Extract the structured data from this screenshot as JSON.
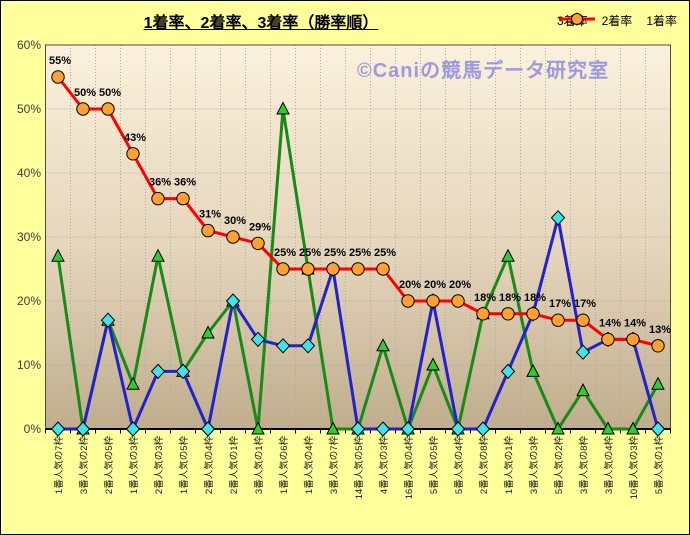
{
  "title": "1着率、2着率、3着率（勝率順）",
  "watermark": "©Caniの競馬データ研究室",
  "colors": {
    "background": "#FFFF9C",
    "plot_gradient_top": "#FBF1DC",
    "plot_gradient_mid": "#E4D4BA",
    "plot_gradient_bottom": "#BFAD8C",
    "grid": "#A9A9A9",
    "axis": "#303030",
    "first_place": "#FF0000",
    "first_place_marker": "#FFA033",
    "second_place": "#2222CC",
    "second_place_marker": "#3FE3E8",
    "third_place": "#188A18",
    "third_place_marker": "#2ECC2E",
    "watermark": "#8C8CDE"
  },
  "chart_data": {
    "type": "line",
    "title": "1着率、2着率、3着率（勝率順）",
    "categories": [
      "1番人気の7枠",
      "3番人気の2枠",
      "2番人気の5枠",
      "1番人気の3枠",
      "2番人気の3枠",
      "1番人気の5枠",
      "2番人気の4枠",
      "2番人気の1枠",
      "3番人気の1枠",
      "1番人気の6枠",
      "1番人気の4枠",
      "3番人気の7枠",
      "14番人気の5枠",
      "4番人気の3枠",
      "16番人気の4枠",
      "5番人気の5枠",
      "5番人気の4枠",
      "2番人気の8枠",
      "1番人気の1枠",
      "3番人気の3枠",
      "5番人気の2枠",
      "3番人気の8枠",
      "3番人気の4枠",
      "10番人気の3枠",
      "5番人気の1枠"
    ],
    "series": [
      {
        "name": "3着率",
        "key": "third",
        "color": "#188A18",
        "marker": "triangle",
        "marker_color": "#2ECC2E",
        "values": [
          27,
          0,
          17,
          7,
          27,
          9,
          15,
          20,
          0,
          50,
          25,
          0,
          0,
          13,
          0,
          10,
          0,
          18,
          27,
          9,
          0,
          6,
          0,
          0,
          7
        ]
      },
      {
        "name": "2着率",
        "key": "second",
        "color": "#2222CC",
        "marker": "diamond",
        "marker_color": "#3FE3E8",
        "values": [
          0,
          0,
          17,
          0,
          9,
          9,
          0,
          20,
          14,
          13,
          13,
          25,
          0,
          0,
          0,
          20,
          0,
          0,
          9,
          18,
          33,
          12,
          14,
          14,
          0
        ]
      },
      {
        "name": "1着率",
        "key": "first",
        "color": "#FF0000",
        "marker": "circle",
        "marker_color": "#FFA033",
        "values": [
          55,
          50,
          50,
          43,
          36,
          36,
          31,
          30,
          29,
          25,
          25,
          25,
          25,
          25,
          20,
          20,
          20,
          18,
          18,
          18,
          17,
          17,
          14,
          14,
          13
        ],
        "data_labels": [
          "55%",
          "50%",
          "50%",
          "43%",
          "36%",
          "36%",
          "31%",
          "30%",
          "29%",
          "25%",
          "25%",
          "25%",
          "25%",
          "25%",
          "20%",
          "20%",
          "20%",
          "18%",
          "18%",
          "18%",
          "17%",
          "17%",
          "14%",
          "14%",
          "13%"
        ]
      }
    ],
    "ylim": [
      0,
      60
    ],
    "yticks": [
      "0%",
      "10%",
      "20%",
      "30%",
      "40%",
      "50%",
      "60%"
    ],
    "grid": true,
    "legend_position": "top-right",
    "x_labels_rotated": true
  }
}
